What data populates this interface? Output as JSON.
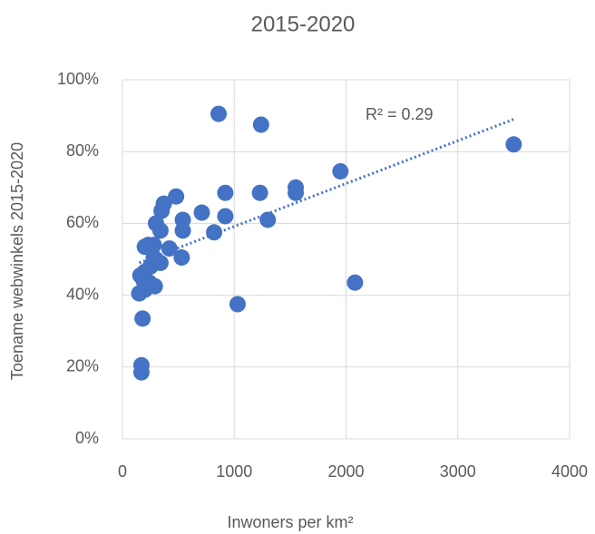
{
  "chart_data": {
    "type": "scatter",
    "title": "2015-2020",
    "x_label": "Inwoners per km²",
    "y_label": "Toename webwinkels 2015-2020",
    "annotation": "R² = 0.29",
    "color": "#4472c4",
    "grid": true,
    "xlim": [
      0,
      4000
    ],
    "xticks": [
      0,
      1000,
      2000,
      3000,
      4000
    ],
    "ylim": [
      0,
      100
    ],
    "yticks": [
      {
        "value": 0,
        "label": "0%"
      },
      {
        "value": 20,
        "label": "20%"
      },
      {
        "value": 40,
        "label": "40%"
      },
      {
        "value": 60,
        "label": "60%"
      },
      {
        "value": 80,
        "label": "80%"
      },
      {
        "value": 100,
        "label": "100%"
      }
    ],
    "x": [
      860,
      1240,
      3500,
      1950,
      1550,
      1550,
      1230,
      920,
      480,
      370,
      350,
      710,
      540,
      920,
      1300,
      300,
      540,
      820,
      340,
      230,
      280,
      200,
      420,
      280,
      530,
      340,
      250,
      200,
      160,
      190,
      290,
      240,
      150,
      200,
      1030,
      2080,
      180,
      170,
      170
    ],
    "values": [
      90.5,
      87.5,
      82,
      74.5,
      70,
      68.5,
      68.5,
      68.5,
      67.5,
      65.5,
      63.5,
      63,
      61,
      62,
      61,
      60,
      58,
      57.5,
      58,
      54,
      54,
      53.5,
      53,
      50.5,
      50.5,
      49,
      48,
      46.5,
      45.5,
      44,
      42.5,
      43.5,
      40.5,
      41.5,
      37.5,
      43.5,
      33.5,
      20.5,
      18.5
    ],
    "trendline": {
      "x": [
        150,
        3500
      ],
      "values": [
        49,
        89
      ]
    }
  }
}
